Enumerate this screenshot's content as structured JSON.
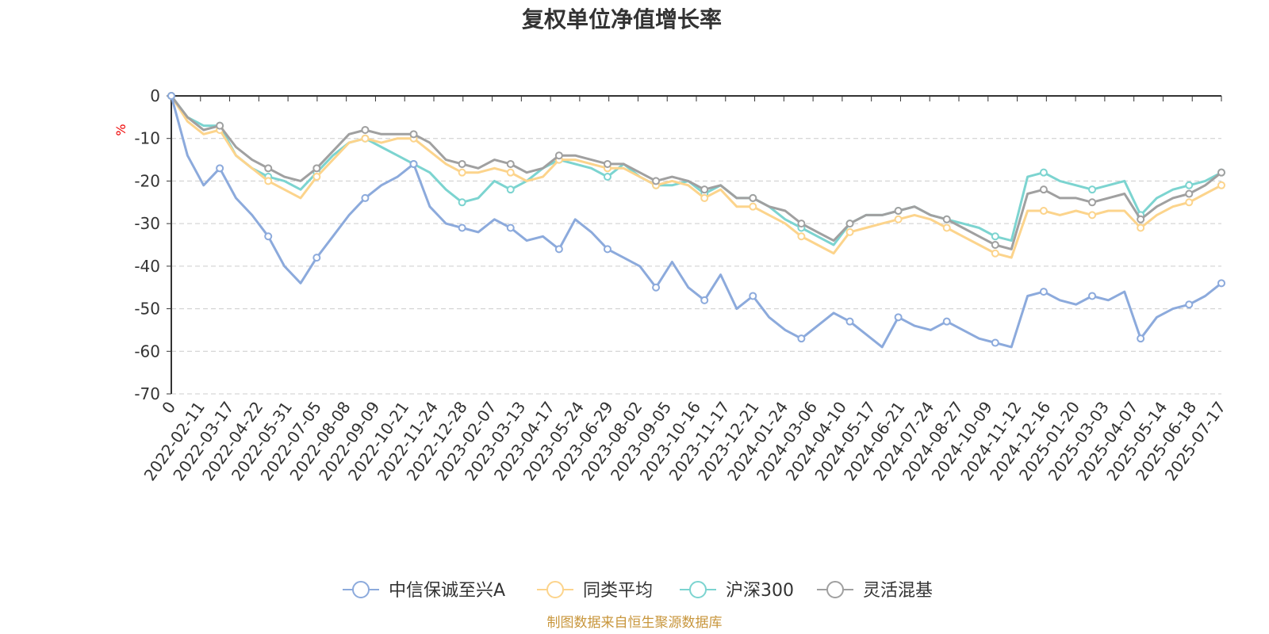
{
  "chart_data": {
    "type": "line",
    "title": "复权单位净值增长率",
    "y_unit": "%",
    "ylim": [
      -70,
      0
    ],
    "yticks": [
      0,
      -10,
      -20,
      -30,
      -40,
      -50,
      -60,
      -70
    ],
    "x_first_tick": "0",
    "xticks": [
      "2022-02-11",
      "2022-03-17",
      "2022-04-22",
      "2022-05-31",
      "2022-07-05",
      "2022-08-08",
      "2022-09-09",
      "2022-10-21",
      "2022-11-24",
      "2022-12-28",
      "2023-02-07",
      "2023-03-13",
      "2023-04-17",
      "2023-05-24",
      "2023-06-29",
      "2023-08-02",
      "2023-09-05",
      "2023-10-16",
      "2023-11-17",
      "2023-12-21",
      "2024-01-24",
      "2024-03-06",
      "2024-04-10",
      "2024-05-17",
      "2024-06-21",
      "2024-07-24",
      "2024-08-27",
      "2024-10-09",
      "2024-11-12",
      "2024-12-16",
      "2025-01-20",
      "2025-03-03",
      "2025-04-07",
      "2025-05-14",
      "2025-06-18",
      "2025-07-17"
    ],
    "grid": "dashed-horizontal",
    "legend_position": "bottom",
    "series": [
      {
        "name": "中信保诚至兴A",
        "color": "#8caadc",
        "values": [
          0,
          -14,
          -21,
          -17,
          -24,
          -28,
          -33,
          -40,
          -44,
          -38,
          -33,
          -28,
          -24,
          -21,
          -19,
          -16,
          -26,
          -30,
          -31,
          -32,
          -29,
          -31,
          -34,
          -33,
          -36,
          -29,
          -32,
          -36,
          -38,
          -40,
          -45,
          -39,
          -45,
          -48,
          -42,
          -50,
          -47,
          -52,
          -55,
          -57,
          -54,
          -51,
          -53,
          -56,
          -59,
          -52,
          -54,
          -55,
          -53,
          -55,
          -57,
          -58,
          -59,
          -47,
          -46,
          -48,
          -49,
          -47,
          -48,
          -46,
          -57,
          -52,
          -50,
          -49,
          -47,
          -44
        ]
      },
      {
        "name": "同类平均",
        "color": "#fcd48c",
        "values": [
          0,
          -6,
          -9,
          -8,
          -14,
          -17,
          -20,
          -22,
          -24,
          -19,
          -15,
          -11,
          -10,
          -11,
          -10,
          -10,
          -13,
          -16,
          -18,
          -18,
          -17,
          -18,
          -20,
          -19,
          -15,
          -15,
          -16,
          -17,
          -17,
          -19,
          -21,
          -20,
          -21,
          -24,
          -22,
          -26,
          -26,
          -28,
          -30,
          -33,
          -35,
          -37,
          -32,
          -31,
          -30,
          -29,
          -28,
          -29,
          -31,
          -33,
          -35,
          -37,
          -38,
          -27,
          -27,
          -28,
          -27,
          -28,
          -27,
          -27,
          -31,
          -28,
          -26,
          -25,
          -23,
          -21
        ]
      },
      {
        "name": "沪深300",
        "color": "#7cd4d0",
        "values": [
          0,
          -5,
          -7,
          -7,
          -14,
          -17,
          -19,
          -20,
          -22,
          -18,
          -14,
          -11,
          -10,
          -12,
          -14,
          -16,
          -18,
          -22,
          -25,
          -24,
          -20,
          -22,
          -20,
          -17,
          -15,
          -16,
          -17,
          -19,
          -16,
          -19,
          -21,
          -21,
          -20,
          -23,
          -21,
          -24,
          -24,
          -26,
          -29,
          -31,
          -33,
          -35,
          -30,
          -28,
          -28,
          -27,
          -26,
          -28,
          -29,
          -30,
          -31,
          -33,
          -34,
          -19,
          -18,
          -20,
          -21,
          -22,
          -21,
          -20,
          -28,
          -24,
          -22,
          -21,
          -20,
          -18
        ]
      },
      {
        "name": "灵活混基",
        "color": "#a0a0a0",
        "values": [
          0,
          -5,
          -8,
          -7,
          -12,
          -15,
          -17,
          -19,
          -20,
          -17,
          -13,
          -9,
          -8,
          -9,
          -9,
          -9,
          -11,
          -15,
          -16,
          -17,
          -15,
          -16,
          -18,
          -17,
          -14,
          -14,
          -15,
          -16,
          -16,
          -18,
          -20,
          -19,
          -20,
          -22,
          -21,
          -24,
          -24,
          -26,
          -27,
          -30,
          -32,
          -34,
          -30,
          -28,
          -28,
          -27,
          -26,
          -28,
          -29,
          -31,
          -33,
          -35,
          -36,
          -23,
          -22,
          -24,
          -24,
          -25,
          -24,
          -23,
          -29,
          -26,
          -24,
          -23,
          -21,
          -18
        ]
      }
    ],
    "source_note": "制图数据来自恒生聚源数据库"
  }
}
